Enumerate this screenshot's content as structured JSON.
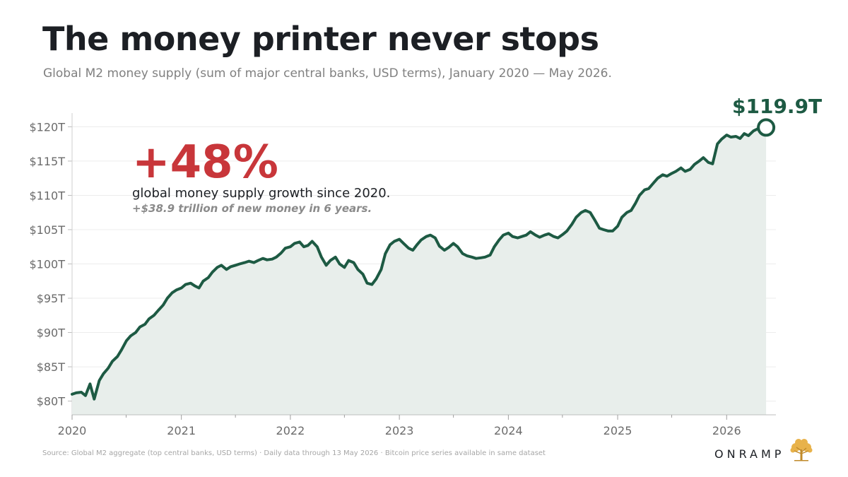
{
  "header": {
    "title": "The money printer never stops",
    "subtitle": "Global M2 money supply (sum of major central banks, USD terms), January 2020 — May 2026."
  },
  "callout": {
    "big": "+48%",
    "text": "global money supply growth since 2020.",
    "sub": "+$38.9 trillion of new money in 6 years."
  },
  "end_label": "$119.9T",
  "footer": {
    "source": "Source: Global M2 aggregate (top central banks, USD terms) · Daily data through 13 May 2026 · Bitcoin price series available in same dataset",
    "brand": "ONRAMP"
  },
  "colors": {
    "line": "#1d5a43",
    "fill": "#e8eeeb",
    "accent": "#c8363a",
    "grid": "#ececec"
  },
  "chart_data": {
    "type": "area",
    "title": "The money printer never stops",
    "subtitle": "Global M2 money supply (sum of major central banks, USD terms), January 2020 — May 2026.",
    "xlabel": "",
    "ylabel": "",
    "xlim": [
      "2020-01-01",
      "2026-06-15"
    ],
    "ylim": [
      78,
      122
    ],
    "y_ticks": [
      80,
      85,
      90,
      95,
      100,
      105,
      110,
      115,
      120
    ],
    "y_tick_labels": [
      "$80T",
      "$85T",
      "$90T",
      "$95T",
      "$100T",
      "$105T",
      "$110T",
      "$115T",
      "$120T"
    ],
    "x_ticks": [
      "2020-01-01",
      "2021-01-01",
      "2022-01-01",
      "2023-01-01",
      "2024-01-01",
      "2025-01-01",
      "2026-01-01"
    ],
    "x_tick_labels": [
      "2020",
      "2021",
      "2022",
      "2023",
      "2024",
      "2025",
      "2026"
    ],
    "grid": "horizontal",
    "series": [
      {
        "points": [
          [
            "2020-01-01",
            81.0
          ],
          [
            "2020-01-15",
            81.2
          ],
          [
            "2020-02-01",
            81.3
          ],
          [
            "2020-02-15",
            80.8
          ],
          [
            "2020-03-01",
            82.5
          ],
          [
            "2020-03-15",
            80.3
          ],
          [
            "2020-04-01",
            83.0
          ],
          [
            "2020-04-15",
            84.0
          ],
          [
            "2020-05-01",
            84.8
          ],
          [
            "2020-05-15",
            85.8
          ],
          [
            "2020-06-01",
            86.5
          ],
          [
            "2020-06-15",
            87.5
          ],
          [
            "2020-07-01",
            88.8
          ],
          [
            "2020-07-15",
            89.5
          ],
          [
            "2020-08-01",
            90.0
          ],
          [
            "2020-08-15",
            90.8
          ],
          [
            "2020-09-01",
            91.2
          ],
          [
            "2020-09-15",
            92.0
          ],
          [
            "2020-10-01",
            92.5
          ],
          [
            "2020-10-15",
            93.2
          ],
          [
            "2020-11-01",
            94.0
          ],
          [
            "2020-11-15",
            95.0
          ],
          [
            "2020-12-01",
            95.8
          ],
          [
            "2020-12-15",
            96.2
          ],
          [
            "2021-01-01",
            96.5
          ],
          [
            "2021-01-15",
            97.0
          ],
          [
            "2021-02-01",
            97.2
          ],
          [
            "2021-02-15",
            96.8
          ],
          [
            "2021-03-01",
            96.5
          ],
          [
            "2021-03-15",
            97.5
          ],
          [
            "2021-04-01",
            98.0
          ],
          [
            "2021-04-15",
            98.8
          ],
          [
            "2021-05-01",
            99.5
          ],
          [
            "2021-05-15",
            99.8
          ],
          [
            "2021-06-01",
            99.2
          ],
          [
            "2021-06-15",
            99.6
          ],
          [
            "2021-07-01",
            99.8
          ],
          [
            "2021-07-15",
            100.0
          ],
          [
            "2021-08-01",
            100.2
          ],
          [
            "2021-08-15",
            100.4
          ],
          [
            "2021-09-01",
            100.2
          ],
          [
            "2021-09-15",
            100.5
          ],
          [
            "2021-10-01",
            100.8
          ],
          [
            "2021-10-15",
            100.6
          ],
          [
            "2021-11-01",
            100.7
          ],
          [
            "2021-11-15",
            101.0
          ],
          [
            "2021-12-01",
            101.6
          ],
          [
            "2021-12-15",
            102.3
          ],
          [
            "2022-01-01",
            102.5
          ],
          [
            "2022-01-15",
            103.0
          ],
          [
            "2022-02-01",
            103.2
          ],
          [
            "2022-02-15",
            102.5
          ],
          [
            "2022-03-01",
            102.7
          ],
          [
            "2022-03-15",
            103.3
          ],
          [
            "2022-04-01",
            102.5
          ],
          [
            "2022-04-15",
            101.0
          ],
          [
            "2022-05-01",
            99.8
          ],
          [
            "2022-05-15",
            100.5
          ],
          [
            "2022-06-01",
            101.0
          ],
          [
            "2022-06-15",
            100.0
          ],
          [
            "2022-07-01",
            99.5
          ],
          [
            "2022-07-15",
            100.5
          ],
          [
            "2022-08-01",
            100.2
          ],
          [
            "2022-08-15",
            99.2
          ],
          [
            "2022-09-01",
            98.5
          ],
          [
            "2022-09-15",
            97.2
          ],
          [
            "2022-10-01",
            97.0
          ],
          [
            "2022-10-15",
            97.8
          ],
          [
            "2022-11-01",
            99.2
          ],
          [
            "2022-11-15",
            101.5
          ],
          [
            "2022-12-01",
            102.8
          ],
          [
            "2022-12-15",
            103.3
          ],
          [
            "2023-01-01",
            103.6
          ],
          [
            "2023-01-15",
            103.0
          ],
          [
            "2023-02-01",
            102.3
          ],
          [
            "2023-02-15",
            102.0
          ],
          [
            "2023-03-01",
            102.8
          ],
          [
            "2023-03-15",
            103.5
          ],
          [
            "2023-04-01",
            104.0
          ],
          [
            "2023-04-15",
            104.2
          ],
          [
            "2023-05-01",
            103.8
          ],
          [
            "2023-05-15",
            102.6
          ],
          [
            "2023-06-01",
            102.0
          ],
          [
            "2023-06-15",
            102.4
          ],
          [
            "2023-07-01",
            103.0
          ],
          [
            "2023-07-15",
            102.5
          ],
          [
            "2023-08-01",
            101.5
          ],
          [
            "2023-08-15",
            101.2
          ],
          [
            "2023-09-01",
            101.0
          ],
          [
            "2023-09-15",
            100.8
          ],
          [
            "2023-10-01",
            100.9
          ],
          [
            "2023-10-15",
            101.0
          ],
          [
            "2023-11-01",
            101.3
          ],
          [
            "2023-11-15",
            102.5
          ],
          [
            "2023-12-01",
            103.5
          ],
          [
            "2023-12-15",
            104.2
          ],
          [
            "2024-01-01",
            104.5
          ],
          [
            "2024-01-15",
            104.0
          ],
          [
            "2024-02-01",
            103.8
          ],
          [
            "2024-02-15",
            104.0
          ],
          [
            "2024-03-01",
            104.2
          ],
          [
            "2024-03-15",
            104.7
          ],
          [
            "2024-04-01",
            104.2
          ],
          [
            "2024-04-15",
            103.9
          ],
          [
            "2024-05-01",
            104.2
          ],
          [
            "2024-05-15",
            104.4
          ],
          [
            "2024-06-01",
            104.0
          ],
          [
            "2024-06-15",
            103.8
          ],
          [
            "2024-07-01",
            104.3
          ],
          [
            "2024-07-15",
            104.8
          ],
          [
            "2024-08-01",
            105.8
          ],
          [
            "2024-08-15",
            106.8
          ],
          [
            "2024-09-01",
            107.5
          ],
          [
            "2024-09-15",
            107.8
          ],
          [
            "2024-10-01",
            107.5
          ],
          [
            "2024-10-15",
            106.5
          ],
          [
            "2024-11-01",
            105.2
          ],
          [
            "2024-11-15",
            105.0
          ],
          [
            "2024-12-01",
            104.8
          ],
          [
            "2024-12-15",
            104.8
          ],
          [
            "2025-01-01",
            105.5
          ],
          [
            "2025-01-15",
            106.8
          ],
          [
            "2025-02-01",
            107.5
          ],
          [
            "2025-02-15",
            107.8
          ],
          [
            "2025-03-01",
            108.8
          ],
          [
            "2025-03-15",
            110.0
          ],
          [
            "2025-04-01",
            110.8
          ],
          [
            "2025-04-15",
            111.0
          ],
          [
            "2025-05-01",
            111.8
          ],
          [
            "2025-05-15",
            112.5
          ],
          [
            "2025-06-01",
            113.0
          ],
          [
            "2025-06-15",
            112.8
          ],
          [
            "2025-07-01",
            113.2
          ],
          [
            "2025-07-15",
            113.5
          ],
          [
            "2025-08-01",
            114.0
          ],
          [
            "2025-08-15",
            113.5
          ],
          [
            "2025-09-01",
            113.8
          ],
          [
            "2025-09-15",
            114.5
          ],
          [
            "2025-10-01",
            115.0
          ],
          [
            "2025-10-15",
            115.5
          ],
          [
            "2025-11-01",
            114.8
          ],
          [
            "2025-11-15",
            114.6
          ],
          [
            "2025-12-01",
            117.5
          ],
          [
            "2025-12-15",
            118.2
          ],
          [
            "2026-01-01",
            118.8
          ],
          [
            "2026-01-15",
            118.5
          ],
          [
            "2026-02-01",
            118.6
          ],
          [
            "2026-02-15",
            118.3
          ],
          [
            "2026-03-01",
            119.0
          ],
          [
            "2026-03-15",
            118.7
          ],
          [
            "2026-04-01",
            119.4
          ],
          [
            "2026-04-15",
            119.7
          ],
          [
            "2026-05-13",
            119.9
          ]
        ]
      }
    ],
    "annotations": [
      {
        "text": "+48%"
      },
      {
        "text": "global money supply growth since 2020."
      },
      {
        "text": "+$38.9 trillion of new money in 6 years."
      },
      {
        "text": "$119.9T",
        "at": [
          "2026-05-13",
          119.9
        ]
      }
    ]
  }
}
